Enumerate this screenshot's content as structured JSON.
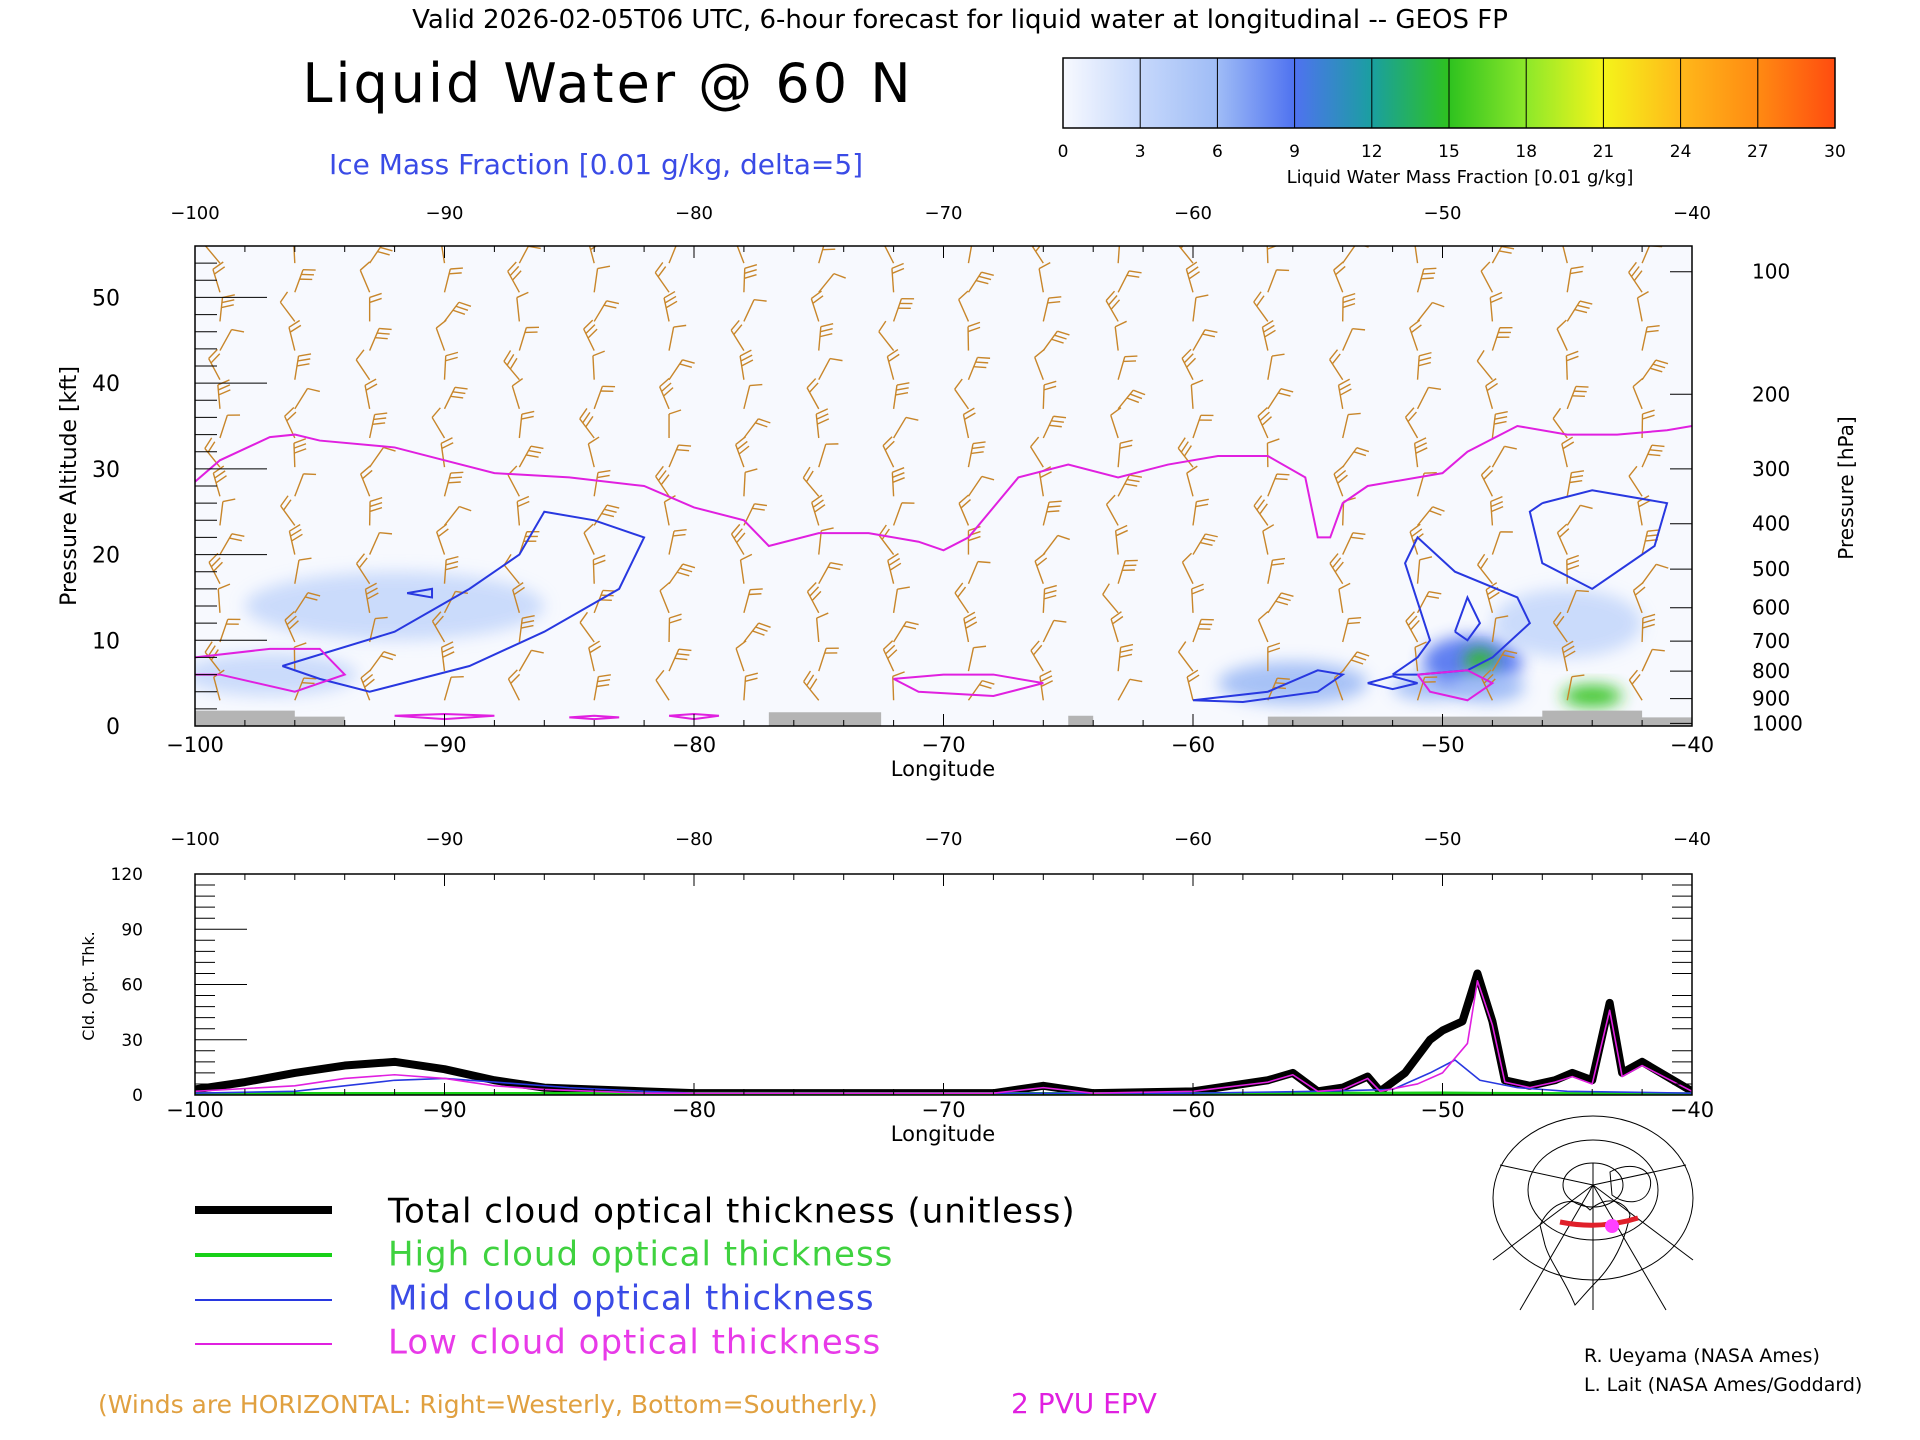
{
  "header": {
    "top_title": "Valid 2026-02-05T06 UTC, 6-hour forecast for liquid water at longitudinal -- GEOS FP",
    "main_title": "Liquid Water @ 60 N",
    "contour_label": "Ice Mass Fraction [0.01 g/kg, delta=5]"
  },
  "colorbar": {
    "ticks": [
      "0",
      "3",
      "6",
      "9",
      "12",
      "15",
      "18",
      "21",
      "24",
      "27",
      "30"
    ],
    "label": "Liquid Water Mass Fraction [0.01 g/kg]",
    "colors": [
      "#f7f9ff",
      "#c6d8fb",
      "#9fbcf6",
      "#4f72f0",
      "#1a9fa0",
      "#2ec21f",
      "#8de82a",
      "#f4f41a",
      "#ffb81a",
      "#ff8a12",
      "#ff4c10"
    ]
  },
  "legend": {
    "total": "Total cloud optical thickness (unitless)",
    "high": "High cloud optical thickness",
    "mid": "Mid cloud optical thickness",
    "low": "Low cloud optical thickness"
  },
  "footer": {
    "winds_note": "(Winds are HORIZONTAL: Right=Westerly, Bottom=Southerly.)",
    "pv_label": "2 PVU EPV",
    "credit1": "R. Ueyama (NASA Ames)",
    "credit2": "L. Lait (NASA Ames/Goddard)"
  },
  "colors": {
    "wind": "#c8862a",
    "tropopause": "#e020e0",
    "ice_contour": "#2838e0",
    "terrain": "#b4b4b4",
    "total": "#000000",
    "high": "#18d018",
    "mid": "#2838e0",
    "low": "#e020e0"
  },
  "chart_data": [
    {
      "type": "heatmap",
      "title": "Liquid Water @ 60 N",
      "xlabel": "Longitude",
      "ylabel": "Pressure Altitude [kft]",
      "ylabel_right": "Pressure [hPa]",
      "xlim": [
        -100,
        -40
      ],
      "ylim": [
        0,
        56
      ],
      "x_ticks": [
        "−100",
        "−90",
        "−80",
        "−70",
        "−60",
        "−50",
        "−40"
      ],
      "y_ticks": [
        "0",
        "10",
        "20",
        "30",
        "40",
        "50"
      ],
      "pressure_ticks": [
        {
          "label": "100",
          "kft": 53
        },
        {
          "label": "200",
          "kft": 38.7
        },
        {
          "label": "300",
          "kft": 30
        },
        {
          "label": "400",
          "kft": 23.6
        },
        {
          "label": "500",
          "kft": 18.3
        },
        {
          "label": "600",
          "kft": 13.8
        },
        {
          "label": "700",
          "kft": 9.9
        },
        {
          "label": "800",
          "kft": 6.4
        },
        {
          "label": "900",
          "kft": 3.2
        },
        {
          "label": "1000",
          "kft": 0.3
        }
      ],
      "liquid_water_blobs": [
        {
          "lon": -92,
          "kft": 14,
          "rx": 6,
          "ry": 4,
          "value": 3
        },
        {
          "lon": -97,
          "kft": 6,
          "rx": 3.5,
          "ry": 2.5,
          "value": 2
        },
        {
          "lon": -56,
          "kft": 5,
          "rx": 3,
          "ry": 2.5,
          "value": 5
        },
        {
          "lon": -50.5,
          "kft": 4.5,
          "rx": 1.5,
          "ry": 1.5,
          "value": 7
        },
        {
          "lon": -48.8,
          "kft": 7.5,
          "rx": 2,
          "ry": 3,
          "value": 9
        },
        {
          "lon": -48.5,
          "kft": 7.5,
          "rx": 0.6,
          "ry": 1.5,
          "value": 15
        },
        {
          "lon": -48.2,
          "kft": 4.5,
          "rx": 1.5,
          "ry": 1.8,
          "value": 6
        },
        {
          "lon": -44,
          "kft": 3.5,
          "rx": 1.2,
          "ry": 1.3,
          "value": 14
        },
        {
          "lon": -45,
          "kft": 12,
          "rx": 3,
          "ry": 4,
          "value": 3
        }
      ],
      "tropopause_2pvu": [
        [
          -100,
          28.5
        ],
        [
          -99,
          31
        ],
        [
          -97,
          33.7
        ],
        [
          -96,
          34
        ],
        [
          -95,
          33.3
        ],
        [
          -92,
          32.5
        ],
        [
          -90,
          31
        ],
        [
          -88,
          29.5
        ],
        [
          -85,
          29
        ],
        [
          -82,
          28
        ],
        [
          -80,
          25.5
        ],
        [
          -78,
          24
        ],
        [
          -77,
          21
        ],
        [
          -75,
          22.5
        ],
        [
          -73,
          22.5
        ],
        [
          -71,
          21.5
        ],
        [
          -70,
          20.5
        ],
        [
          -69,
          22
        ],
        [
          -67,
          29
        ],
        [
          -65,
          30.5
        ],
        [
          -63,
          29
        ],
        [
          -61,
          30.5
        ],
        [
          -59,
          31.5
        ],
        [
          -57,
          31.5
        ],
        [
          -55.5,
          29
        ],
        [
          -55,
          22
        ],
        [
          -54.5,
          22
        ],
        [
          -54,
          26
        ],
        [
          -53,
          28
        ],
        [
          -50,
          29.5
        ],
        [
          -49,
          32
        ],
        [
          -47,
          35
        ],
        [
          -45,
          34
        ],
        [
          -43,
          34
        ],
        [
          -41,
          34.5
        ],
        [
          -40,
          35
        ]
      ],
      "low_pv_contours": [
        [
          [
            -100,
            8
          ],
          [
            -97,
            9
          ],
          [
            -95,
            9
          ],
          [
            -94,
            6
          ],
          [
            -96,
            4
          ],
          [
            -99,
            6
          ],
          [
            -100,
            6
          ]
        ],
        [
          [
            -72,
            5.5
          ],
          [
            -70,
            6
          ],
          [
            -68,
            6
          ],
          [
            -66,
            5
          ],
          [
            -68,
            3.5
          ],
          [
            -71,
            4
          ],
          [
            -72,
            5.5
          ]
        ],
        [
          [
            -51,
            6
          ],
          [
            -49,
            6.5
          ],
          [
            -48,
            5
          ],
          [
            -49,
            3
          ],
          [
            -50.5,
            4
          ],
          [
            -51,
            6
          ]
        ],
        [
          [
            -92,
            1.2
          ],
          [
            -90,
            1.4
          ],
          [
            -88,
            1.2
          ],
          [
            -90,
            0.8
          ],
          [
            -92,
            1.2
          ]
        ],
        [
          [
            -85,
            1
          ],
          [
            -84,
            1.2
          ],
          [
            -83,
            1
          ],
          [
            -84,
            0.8
          ],
          [
            -85,
            1
          ]
        ],
        [
          [
            -81,
            1.2
          ],
          [
            -80,
            1.4
          ],
          [
            -79,
            1.2
          ],
          [
            -80,
            0.8
          ],
          [
            -81,
            1.2
          ]
        ]
      ],
      "ice_contours": [
        [
          [
            -96.5,
            7
          ],
          [
            -92,
            11
          ],
          [
            -89,
            16
          ],
          [
            -87,
            20
          ],
          [
            -86,
            25
          ],
          [
            -84,
            24
          ],
          [
            -82,
            22
          ],
          [
            -83,
            16
          ],
          [
            -86,
            11
          ],
          [
            -89,
            7
          ],
          [
            -93,
            4
          ],
          [
            -95,
            5.5
          ],
          [
            -96.5,
            7
          ]
        ],
        [
          [
            -60,
            3
          ],
          [
            -57,
            4
          ],
          [
            -55,
            6.5
          ],
          [
            -54,
            6
          ],
          [
            -55,
            4
          ],
          [
            -58,
            2.8
          ],
          [
            -60,
            3
          ]
        ],
        [
          [
            -52,
            6
          ],
          [
            -51,
            8
          ],
          [
            -50.5,
            10
          ],
          [
            -51.5,
            19
          ],
          [
            -51,
            22
          ],
          [
            -49.5,
            18
          ],
          [
            -47,
            15
          ],
          [
            -46.5,
            12
          ],
          [
            -48,
            8
          ],
          [
            -49,
            6.5
          ],
          [
            -51,
            6
          ],
          [
            -52,
            6
          ]
        ],
        [
          [
            -49.5,
            11
          ],
          [
            -49,
            15
          ],
          [
            -48.5,
            12
          ],
          [
            -49,
            10
          ],
          [
            -49.5,
            11
          ]
        ],
        [
          [
            -46,
            26
          ],
          [
            -44,
            27.5
          ],
          [
            -41,
            26
          ],
          [
            -41.5,
            21
          ],
          [
            -44,
            16
          ],
          [
            -46,
            19
          ],
          [
            -46.5,
            25
          ],
          [
            -46,
            26
          ]
        ],
        [
          [
            -53,
            5
          ],
          [
            -52,
            5.8
          ],
          [
            -51,
            5
          ],
          [
            -52,
            4.3
          ],
          [
            -53,
            5
          ]
        ],
        [
          [
            -91.5,
            15.5
          ],
          [
            -90.5,
            16
          ],
          [
            -90.5,
            15
          ],
          [
            -91.5,
            15.5
          ]
        ]
      ],
      "terrain": [
        [
          -100,
          1.8
        ],
        [
          -96,
          1.8
        ],
        [
          -96,
          1.1
        ],
        [
          -94,
          1.1
        ],
        [
          -94,
          0
        ],
        [
          -80,
          0
        ],
        [
          -77,
          0
        ],
        [
          -77,
          1.6
        ],
        [
          -72.5,
          1.6
        ],
        [
          -72.5,
          0
        ],
        [
          -65,
          0
        ],
        [
          -65,
          1.2
        ],
        [
          -64,
          1.2
        ],
        [
          -64,
          0
        ],
        [
          -57,
          0
        ],
        [
          -57,
          1.1
        ],
        [
          -46,
          1.1
        ],
        [
          -46,
          1.8
        ],
        [
          -42,
          1.8
        ],
        [
          -42,
          1
        ],
        [
          -40,
          1
        ]
      ],
      "wind_columns": [
        -99,
        -96,
        -93,
        -90,
        -87,
        -84,
        -81,
        -78,
        -75,
        -72,
        -69,
        -66,
        -63,
        -60,
        -57,
        -54,
        -51,
        -48,
        -45,
        -42
      ]
    },
    {
      "type": "line",
      "xlabel": "Longitude",
      "ylabel": "Cld. Opt. Thk.",
      "xlim": [
        -100,
        -40
      ],
      "ylim": [
        0,
        120
      ],
      "x_ticks": [
        "−100",
        "−90",
        "−80",
        "−70",
        "−60",
        "−50",
        "−40"
      ],
      "y_ticks": [
        "0",
        "30",
        "60",
        "90",
        "120"
      ],
      "series": [
        {
          "name": "Total cloud optical thickness (unitless)",
          "key": "total",
          "x": [
            -100,
            -98,
            -96,
            -94,
            -92,
            -90,
            -88,
            -86,
            -84,
            -82,
            -80,
            -75,
            -70,
            -68,
            -66,
            -64,
            -60,
            -57,
            -56,
            -55,
            -54,
            -53,
            -52.5,
            -51.5,
            -50.5,
            -50,
            -49.2,
            -48.6,
            -48,
            -47.5,
            -46.5,
            -45.5,
            -44.8,
            -44,
            -43.3,
            -42.8,
            -42,
            -41,
            -40
          ],
          "y": [
            3,
            7,
            12,
            16,
            18,
            14,
            8,
            4,
            3,
            2,
            1,
            1,
            1,
            1,
            5,
            1,
            2,
            8,
            12,
            2,
            4,
            10,
            2,
            12,
            30,
            35,
            40,
            66,
            40,
            8,
            5,
            8,
            12,
            8,
            50,
            12,
            18,
            10,
            2
          ]
        },
        {
          "name": "High cloud optical thickness",
          "key": "high",
          "x": [
            -100,
            -80,
            -60,
            -50,
            -48,
            -40
          ],
          "y": [
            0.5,
            0.6,
            0.5,
            0.8,
            0.6,
            0.4
          ]
        },
        {
          "name": "Mid cloud optical thickness",
          "key": "mid",
          "x": [
            -100,
            -96,
            -94,
            -92,
            -90,
            -88,
            -85,
            -82,
            -80,
            -60,
            -55,
            -52,
            -50.5,
            -49.5,
            -48.5,
            -47,
            -45,
            -40
          ],
          "y": [
            1,
            2,
            5,
            8,
            9,
            7,
            4,
            2,
            1,
            1,
            2,
            3,
            12,
            19,
            8,
            4,
            2,
            1
          ]
        },
        {
          "name": "Low cloud optical thickness",
          "key": "low",
          "x": [
            -100,
            -96,
            -94,
            -92,
            -90,
            -88,
            -86,
            -84,
            -82,
            -80,
            -75,
            -70,
            -68,
            -66,
            -64,
            -60,
            -57,
            -56,
            -55,
            -54,
            -53,
            -52.5,
            -51,
            -50,
            -49,
            -48.6,
            -48,
            -47.5,
            -46.5,
            -45.5,
            -44.8,
            -44,
            -43.3,
            -42.8,
            -42,
            -41,
            -40
          ],
          "y": [
            2,
            5,
            9,
            11,
            9,
            5,
            3,
            2,
            1,
            1,
            1,
            1,
            1,
            4,
            1,
            2,
            7,
            11,
            2,
            3,
            9,
            2,
            6,
            12,
            28,
            62,
            38,
            7,
            4,
            7,
            10,
            6,
            46,
            10,
            16,
            9,
            2
          ]
        }
      ]
    }
  ]
}
